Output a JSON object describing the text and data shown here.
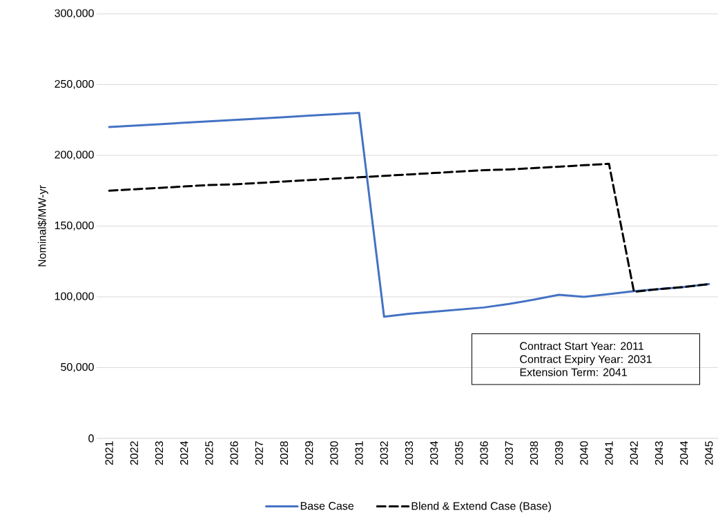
{
  "chart_data": {
    "type": "line",
    "ylabel": "Nominal$/MW-yr",
    "categories": [
      "2021",
      "2022",
      "2023",
      "2024",
      "2025",
      "2026",
      "2027",
      "2028",
      "2029",
      "2030",
      "2031",
      "2032",
      "2033",
      "2034",
      "2035",
      "2036",
      "2037",
      "2038",
      "2039",
      "2040",
      "2041",
      "2042",
      "2043",
      "2044",
      "2045"
    ],
    "series": [
      {
        "name": "Base Case",
        "color": "#4472c4",
        "line_style": "solid",
        "values": [
          220000,
          221000,
          222000,
          223000,
          224000,
          225000,
          226000,
          227000,
          228000,
          229000,
          230000,
          86000,
          88000,
          89500,
          91000,
          92500,
          95000,
          98000,
          101500,
          100000,
          102000,
          104000,
          105500,
          107000,
          109000
        ]
      },
      {
        "name": "Blend & Extend Case (Base)",
        "color": "#000000",
        "line_style": "dashed",
        "values": [
          175000,
          176000,
          177000,
          178000,
          179000,
          179500,
          180500,
          181500,
          182500,
          183500,
          184500,
          185500,
          186500,
          187500,
          188500,
          189500,
          190000,
          191000,
          192000,
          193000,
          194000,
          103500,
          105500,
          107000,
          109000
        ]
      }
    ],
    "ylim": [
      0,
      300000
    ],
    "yticks": [
      {
        "value": 0,
        "label": "0"
      },
      {
        "value": 50000,
        "label": "50,000"
      },
      {
        "value": 100000,
        "label": "100,000"
      },
      {
        "value": 150000,
        "label": "150,000"
      },
      {
        "value": 200000,
        "label": "200,000"
      },
      {
        "value": 250000,
        "label": "250,000"
      },
      {
        "value": 300000,
        "label": "300,000"
      }
    ],
    "grid": "y",
    "legend": "bottom",
    "annotations": [
      "Contract Start Year: 2011",
      "Contract Expiry Year: 2031",
      "Extension Term: 2041"
    ]
  }
}
